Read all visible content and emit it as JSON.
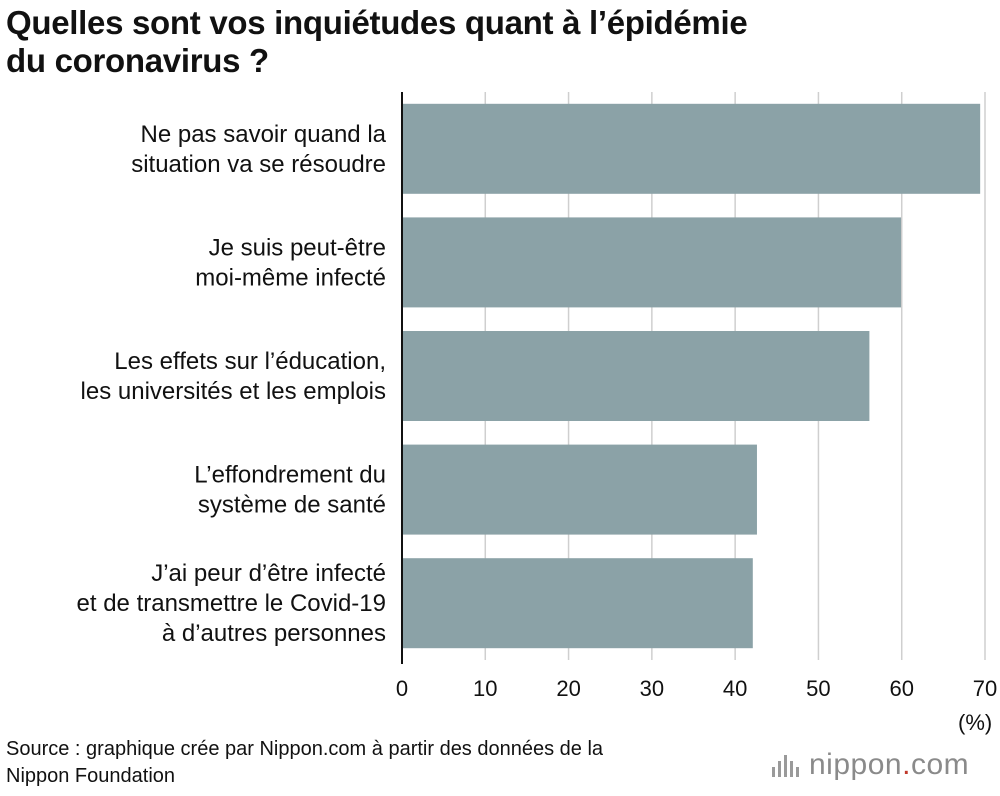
{
  "title_lines": [
    "Quelles sont vos inquiétudes quant à l’épidémie",
    "du coronavirus ?"
  ],
  "chart_data": {
    "type": "bar",
    "orientation": "horizontal",
    "title": "Quelles sont vos inquiétudes quant à l’épidémie du coronavirus ?",
    "categories": [
      [
        "Ne pas savoir quand la",
        "situation va se résoudre"
      ],
      [
        "Je suis peut-être",
        "moi-même infecté"
      ],
      [
        "Les effets sur l’éducation,",
        "les universités et les emplois"
      ],
      [
        "L’effondrement du",
        "système de santé"
      ],
      [
        "J’ai peur d’être infecté",
        "et de transmettre le Covid-19",
        "à d’autres personnes"
      ]
    ],
    "values": [
      69.3,
      59.8,
      56.0,
      42.5,
      42.0
    ],
    "xlim": [
      0,
      70
    ],
    "xticks": [
      "0",
      "10",
      "20",
      "30",
      "40",
      "50",
      "60",
      "70"
    ],
    "xunit": "(%)",
    "bar_color": "#8ba2a7",
    "grid": true
  },
  "source_lines": [
    "Source : graphique crée par Nippon.com à partir des données de la",
    "Nippon Foundation"
  ],
  "logo": {
    "name": "nippon",
    "dot": ".",
    "tld": "com"
  }
}
